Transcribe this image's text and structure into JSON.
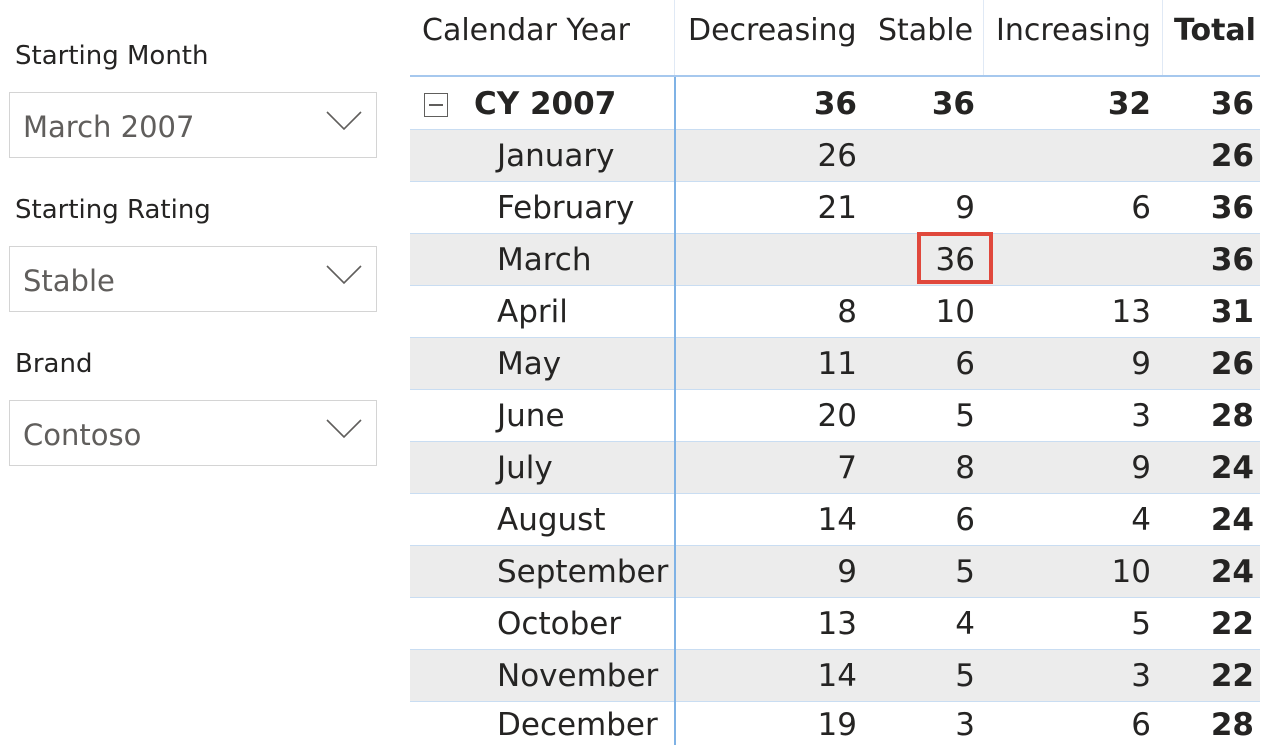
{
  "slicers": {
    "starting_month": {
      "title": "Starting Month",
      "value": "March 2007"
    },
    "starting_rating": {
      "title": "Starting Rating",
      "value": "Stable"
    },
    "brand": {
      "title": "Brand",
      "value": "Contoso"
    }
  },
  "matrix": {
    "headers": {
      "row_label": "Calendar Year",
      "decreasing": "Decreasing",
      "stable": "Stable",
      "increasing": "Increasing",
      "total": "Total"
    },
    "year_row": {
      "label": "CY 2007",
      "decreasing": "36",
      "stable": "36",
      "increasing": "32",
      "total": "36"
    },
    "rows": [
      {
        "label": "January",
        "decreasing": "26",
        "stable": "",
        "increasing": "",
        "total": "26"
      },
      {
        "label": "February",
        "decreasing": "21",
        "stable": "9",
        "increasing": "6",
        "total": "36"
      },
      {
        "label": "March",
        "decreasing": "",
        "stable": "36",
        "increasing": "",
        "total": "36"
      },
      {
        "label": "April",
        "decreasing": "8",
        "stable": "10",
        "increasing": "13",
        "total": "31"
      },
      {
        "label": "May",
        "decreasing": "11",
        "stable": "6",
        "increasing": "9",
        "total": "26"
      },
      {
        "label": "June",
        "decreasing": "20",
        "stable": "5",
        "increasing": "3",
        "total": "28"
      },
      {
        "label": "July",
        "decreasing": "7",
        "stable": "8",
        "increasing": "9",
        "total": "24"
      },
      {
        "label": "August",
        "decreasing": "14",
        "stable": "6",
        "increasing": "4",
        "total": "24"
      },
      {
        "label": "September",
        "decreasing": "9",
        "stable": "5",
        "increasing": "10",
        "total": "24"
      },
      {
        "label": "October",
        "decreasing": "13",
        "stable": "4",
        "increasing": "5",
        "total": "22"
      },
      {
        "label": "November",
        "decreasing": "14",
        "stable": "5",
        "increasing": "3",
        "total": "22"
      },
      {
        "label": "December",
        "decreasing": "19",
        "stable": "3",
        "increasing": "6",
        "total": "28"
      }
    ],
    "highlighted_cell": "March / Stable",
    "highlight_color": "#e0483c",
    "row_shade_color": "#ececec",
    "divider_color": "#7fb2e5"
  }
}
